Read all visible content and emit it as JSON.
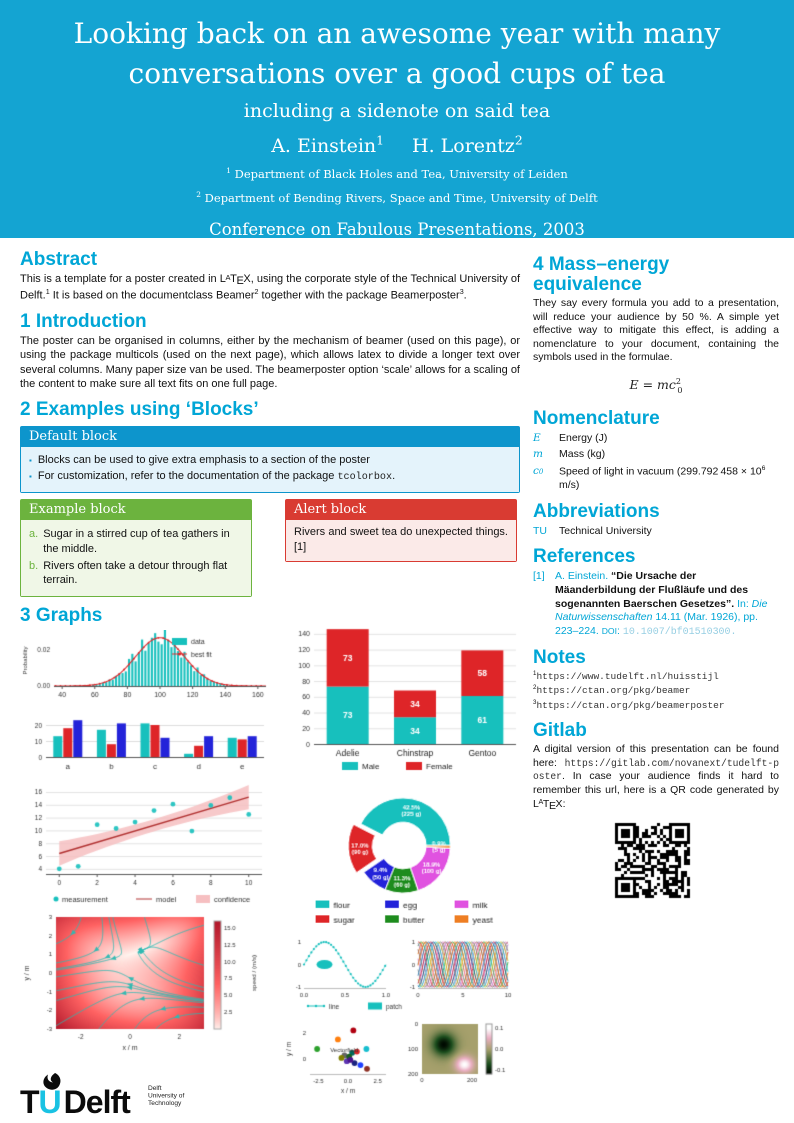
{
  "colors": {
    "banner": "#14A4D2",
    "accent": "#00A6D6",
    "block_default": "#0D95CC",
    "block_example": "#6CB33E",
    "block_alert": "#D93B32",
    "teal": "#17C0BD",
    "red": "#DE2528",
    "blue": "#2323D9",
    "green": "#1E8C1E",
    "magenta": "#E052E0",
    "orange": "#EE7E23",
    "darkred": "#B03030",
    "band": "#F6BFC1"
  },
  "header": {
    "title": "Looking back on an awesome year with many conversations over a good cups of tea",
    "subtitle": "including a sidenote on said tea",
    "authors": [
      {
        "name": "A. Einstein",
        "sup": "1"
      },
      {
        "name": "H. Lorentz",
        "sup": "2"
      }
    ],
    "affiliations": [
      {
        "sup": "1",
        "text": "Department of Black Holes and Tea, University of Leiden"
      },
      {
        "sup": "2",
        "text": "Department of Bending Rivers, Space and Time, University of Delft"
      }
    ],
    "conference": "Conference on Fabulous Presentations, 2003"
  },
  "left": {
    "abstract": {
      "heading": "Abstract",
      "segments": [
        {
          "t": "This is a template for a poster created in ",
          "s": "pl"
        },
        {
          "t": "LaTeX",
          "s": "latex"
        },
        {
          "t": ", using the corporate style of the Technical University of Delft.",
          "s": "pl"
        },
        {
          "t": "1",
          "s": "sup"
        },
        {
          "t": " It is based on the documentclass Beamer",
          "s": "pl"
        },
        {
          "t": "2",
          "s": "sup"
        },
        {
          "t": " together with the package Beamerposter",
          "s": "pl"
        },
        {
          "t": "3",
          "s": "sup"
        },
        {
          "t": ".",
          "s": "pl"
        }
      ]
    },
    "introduction": {
      "heading": "1 Introduction",
      "text": "The poster can be organised in columns, either by the mechanism of beamer (used on this page), or using the package multicols (used on the next page), which allows latex to divide a longer text over several columns. Many paper size van be used. The beamerposter option ‘scale’ allows for a scaling of the content to make sure all text fits on one full page."
    },
    "blocks": {
      "heading": "2 Examples using ‘Blocks’",
      "default_block": {
        "title": "Default block",
        "items": [
          [
            {
              "t": "Blocks can be used to give extra emphasis to a section of the poster",
              "s": "pl"
            }
          ],
          [
            {
              "t": "For customization, refer to the documentation of the package ",
              "s": "pl"
            },
            {
              "t": "tcolorbox",
              "s": "mono"
            },
            {
              "t": ".",
              "s": "pl"
            }
          ]
        ]
      },
      "example_block": {
        "title": "Example block",
        "items": [
          {
            "label": "a.",
            "text": "Sugar in a stirred cup of tea gathers in the middle."
          },
          {
            "label": "b.",
            "text": "Rivers often take a detour through flat terrain."
          }
        ]
      },
      "alert_block": {
        "title": "Alert block",
        "text": "Rivers and sweet tea do unexpected things.[1]"
      }
    },
    "graphs": {
      "heading": "3 Graphs"
    },
    "logo": {
      "tu_black": "T",
      "tu_cyan": "U",
      "delft": "Delft",
      "tagline": [
        "Delft",
        "University of",
        "Technology"
      ]
    }
  },
  "right": {
    "mass_energy": {
      "heading": "4 Mass–energy equivalence",
      "text": "They say every formula you add to a presentation, will reduce your audience by 50 %. A simple yet effective way to mitigate this effect, is adding a nomenclature to your document, containing the symbols used in the formulae.",
      "formula": [
        {
          "t": "E",
          "s": "mit"
        },
        {
          "t": " = ",
          "s": "pl"
        },
        {
          "t": "mc",
          "s": "mit"
        },
        {
          "t": "2",
          "s": "msup"
        },
        {
          "t": "0",
          "s": "msub"
        }
      ]
    },
    "nomenclature": {
      "heading": "Nomenclature",
      "items": [
        {
          "symbol": [
            {
              "t": "E",
              "s": "sym"
            }
          ],
          "desc": [
            {
              "t": "Energy (J)",
              "s": "pl"
            }
          ]
        },
        {
          "symbol": [
            {
              "t": "m",
              "s": "sym"
            }
          ],
          "desc": [
            {
              "t": "Mass (kg)",
              "s": "pl"
            }
          ]
        },
        {
          "symbol": [
            {
              "t": "c",
              "s": "sym"
            },
            {
              "t": "0",
              "s": "symsub"
            }
          ],
          "desc": [
            {
              "t": "Speed of light in vacuum (299.792 458 × 10",
              "s": "pl"
            },
            {
              "t": "6",
              "s": "sup"
            },
            {
              "t": " m/s)",
              "s": "pl"
            }
          ]
        }
      ]
    },
    "abbreviations": {
      "heading": "Abbreviations",
      "items": [
        {
          "abbr": "TU",
          "full": "Technical University"
        }
      ]
    },
    "references": {
      "heading": "References",
      "entries": [
        {
          "num": "[1]",
          "segments": [
            {
              "t": "A. Einstein.",
              "s": "cyan"
            },
            {
              "t": " “Die Ursache der Mäanderbildung der Flußläufe und des sogenannten Baerschen Gesetzes”.",
              "s": "b"
            },
            {
              "t": " In: ",
              "s": "cyan"
            },
            {
              "t": "Die Naturwissenschaften",
              "s": "cyanit"
            },
            {
              "t": " 14.11 (Mar. 1926), pp. 223–224. ",
              "s": "cyan"
            },
            {
              "t": "doi",
              "s": "cyansc"
            },
            {
              "t": ": ",
              "s": "cyan"
            },
            {
              "t": "10.1007/bf01510300.",
              "s": "palemono"
            }
          ]
        }
      ]
    },
    "notes": {
      "heading": "Notes",
      "items": [
        {
          "num": "1",
          "url": "https://www.tudelft.nl/huisstijl"
        },
        {
          "num": "2",
          "url": "https://ctan.org/pkg/beamer"
        },
        {
          "num": "3",
          "url": "https://ctan.org/pkg/beamerposter"
        }
      ]
    },
    "gitlab": {
      "heading": "Gitlab",
      "segments": [
        {
          "t": "A digital version of this presentation can be found here: ",
          "s": "pl"
        },
        {
          "t": "https://gitlab.com/novanext/tudelft-poster",
          "s": "monodark"
        },
        {
          "t": ". In case your audience finds it hard to remember this url, here is a QR code generated by ",
          "s": "pl"
        },
        {
          "t": "LaTeX",
          "s": "latex"
        },
        {
          "t": ":",
          "s": "pl"
        }
      ],
      "qr_url": "https://gitlab.com/novanext/tudelft-poster"
    }
  },
  "chart_data": [
    {
      "id": "hist-fit",
      "type": "histogram+fit",
      "ylabel": "Probability",
      "yticks": [
        "0.00",
        "0.02"
      ],
      "xticks": [
        40,
        60,
        80,
        100,
        120,
        140,
        160
      ],
      "distribution": {
        "mean": 100,
        "std": 15,
        "peak": 0.027
      },
      "legend": [
        {
          "label": "data",
          "color": "#17C0BD"
        },
        {
          "label": "best fit",
          "color": "#DE2528"
        }
      ]
    },
    {
      "id": "grouped-bar",
      "type": "bar",
      "categories": [
        "a",
        "b",
        "c",
        "d",
        "e"
      ],
      "yticks": [
        0,
        10,
        20
      ],
      "ylim": [
        0,
        25
      ],
      "series": [
        {
          "color": "#17C0BD",
          "values": [
            13,
            17,
            21,
            2,
            12
          ]
        },
        {
          "color": "#DE2528",
          "values": [
            18,
            8,
            20,
            7,
            11
          ]
        },
        {
          "color": "#2323D9",
          "values": [
            23,
            21,
            12,
            13,
            13
          ]
        }
      ]
    },
    {
      "id": "penguins",
      "type": "bar-stacked",
      "categories": [
        "Adelie",
        "Chinstrap",
        "Gentoo"
      ],
      "yticks": [
        0,
        20,
        40,
        60,
        80,
        100,
        120,
        140
      ],
      "ylim": [
        0,
        150
      ],
      "series": [
        {
          "name": "Male",
          "color": "#17C0BD",
          "values": [
            73,
            34,
            61
          ]
        },
        {
          "name": "Female",
          "color": "#DE2528",
          "values": [
            73,
            34,
            58
          ]
        }
      ]
    },
    {
      "id": "regression",
      "type": "scatter+fit",
      "xticks": [
        0,
        2,
        4,
        6,
        8,
        10
      ],
      "yticks": [
        4,
        6,
        8,
        10,
        12,
        14,
        16
      ],
      "points": [
        [
          0,
          4.0
        ],
        [
          1,
          4.4
        ],
        [
          2,
          10.9
        ],
        [
          3,
          10.3
        ],
        [
          4,
          11.3
        ],
        [
          5,
          13.1
        ],
        [
          6,
          14.1
        ],
        [
          7,
          9.9
        ],
        [
          8,
          13.9
        ],
        [
          9,
          15.1
        ],
        [
          10,
          12.5
        ]
      ],
      "model": {
        "intercept": 6.4,
        "slope": 0.88
      },
      "confidence_half_width": {
        "ends": 1.9,
        "middle": 0.95
      },
      "legend": [
        {
          "label": "measurement",
          "color": "#17C0BD"
        },
        {
          "label": "model",
          "color": "#B03030"
        },
        {
          "label": "confidence",
          "color": "#F6BFC1"
        }
      ]
    },
    {
      "id": "donut",
      "type": "pie",
      "slices": [
        {
          "label": "flour",
          "pct": 42.5,
          "amount": "225 g",
          "color": "#17C0BD",
          "explode": false
        },
        {
          "label": "sugar",
          "pct": 17.0,
          "amount": "90 g",
          "color": "#DE2528",
          "explode": true
        },
        {
          "label": "egg",
          "pct": 9.4,
          "amount": "50 g",
          "color": "#2323D9",
          "explode": false
        },
        {
          "label": "butter",
          "pct": 11.3,
          "amount": "60 g",
          "color": "#1E8C1E",
          "explode": false
        },
        {
          "label": "milk",
          "pct": 18.9,
          "amount": "100 g",
          "color": "#E052E0",
          "explode": false
        },
        {
          "label": "yeast",
          "pct": 0.9,
          "amount": "5 g",
          "color": "#EE7E23",
          "explode": false
        }
      ],
      "legend_columns": [
        [
          "flour",
          "sugar"
        ],
        [
          "egg",
          "butter"
        ],
        [
          "milk",
          "yeast"
        ]
      ]
    },
    {
      "id": "small-multiples",
      "type": "multi-panel",
      "panels": [
        {
          "name": "line-patch",
          "xticks": [
            "0.0",
            "0.5",
            "1.0"
          ],
          "yticks": [
            "-1",
            "0",
            "1"
          ],
          "legend": [
            "line",
            "patch"
          ],
          "color": "#17C0BD"
        },
        {
          "name": "phase-lines",
          "xticks": [
            "0",
            "5",
            "10"
          ],
          "yticks": [
            "-1",
            "0",
            "1"
          ],
          "count": 14,
          "colors": [
            "#1f77b4",
            "#ff7f0e",
            "#2ca02c",
            "#d62728",
            "#9467bd",
            "#8c564b",
            "#e377c2",
            "#7f7f7f",
            "#bcbd22",
            "#17becf",
            "#004488",
            "#bb1144"
          ]
        },
        {
          "name": "scatter-field",
          "xlabel": "x / m",
          "ylabel": "y / m",
          "xticks": [
            "-2.5",
            "0.0",
            "2.5"
          ],
          "yticks": [
            "0",
            "2"
          ],
          "annotation": "Vectorfield",
          "points": [
            [
              -2.6,
              0.75,
              "#2ca02c"
            ],
            [
              -0.85,
              1.5,
              "#ff7f0e"
            ],
            [
              0.45,
              2.2,
              "#b00010"
            ],
            [
              1.55,
              0.75,
              "#17becf"
            ],
            [
              -0.3,
              0.25,
              "#666666"
            ],
            [
              0.35,
              0.45,
              "#00695c"
            ],
            [
              0.75,
              0.55,
              "#d62728"
            ],
            [
              -0.1,
              -0.2,
              "#5e35b1"
            ],
            [
              0.1,
              0.15,
              "#1b5e20"
            ],
            [
              0.55,
              -0.35,
              "#1a237e"
            ],
            [
              1.05,
              -0.5,
              "#1e40ff"
            ],
            [
              1.6,
              -0.8,
              "#8d2f23"
            ],
            [
              0.2,
              -0.1,
              "#4a148c"
            ],
            [
              -0.55,
              0.05,
              "#808000"
            ]
          ]
        },
        {
          "name": "pcolormesh",
          "yticks": [
            "0",
            "100",
            "200"
          ],
          "xticks": [
            "0",
            "200"
          ],
          "colorbar_ticks": [
            "0.1",
            "0.0",
            "-0.1"
          ]
        }
      ]
    },
    {
      "id": "streamplot",
      "type": "streamplot",
      "xlabel": "x / m",
      "ylabel": "y / m",
      "xticks": [
        -2,
        0,
        2
      ],
      "yticks": [
        -3,
        -2,
        -1,
        0,
        1,
        2,
        3
      ],
      "colorbar": {
        "label": "speed / (m/s)",
        "ticks": [
          "2.5",
          "5.0",
          "7.5",
          "10.0",
          "12.5",
          "15.0"
        ]
      }
    }
  ]
}
